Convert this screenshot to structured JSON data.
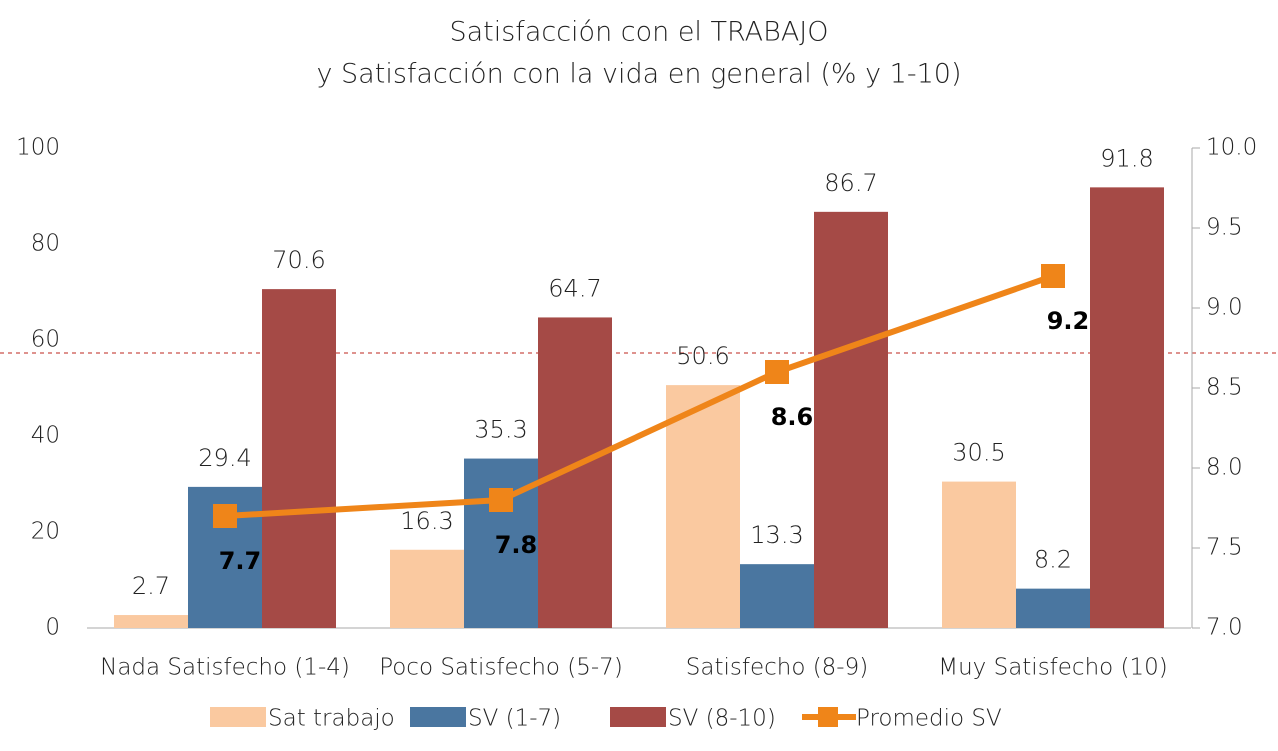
{
  "chart_data": {
    "type": "bar_line",
    "title": [
      "Satisfacción con el TRABAJO",
      "y Satisfacción con la vida en general (% y 1-10)"
    ],
    "categories": [
      "Nada Satisfecho (1-4)",
      "Poco Satisfecho (5-7)",
      "Satisfecho (8-9)",
      "Muy Satisfecho (10)"
    ],
    "series": [
      {
        "name": "Sat trabajo",
        "color": "#fac9a0",
        "values": [
          2.7,
          16.3,
          50.6,
          30.5
        ]
      },
      {
        "name": "SV (1-7)",
        "color": "#4a76a0",
        "values": [
          29.4,
          35.3,
          13.3,
          8.2
        ]
      },
      {
        "name": "SV (8-10)",
        "color": "#a54a46",
        "values": [
          70.6,
          64.7,
          86.7,
          91.8
        ]
      },
      {
        "name": "Promedio SV",
        "color": "#ef8519",
        "axis": "y2",
        "values": [
          7.7,
          7.8,
          8.6,
          9.2
        ]
      }
    ],
    "ylim": [
      0,
      100
    ],
    "yticks": [
      0,
      20,
      40,
      60,
      80,
      100
    ],
    "y2lim": [
      7,
      10
    ],
    "y2ticks": [
      {
        "value": 7,
        "label": "7.0"
      },
      7.5,
      {
        "value": 8,
        "label": "8.0"
      },
      8.5,
      {
        "value": 9,
        "label": "9.0"
      },
      9.5,
      {
        "value": 10,
        "label": "10.0"
      }
    ]
  }
}
